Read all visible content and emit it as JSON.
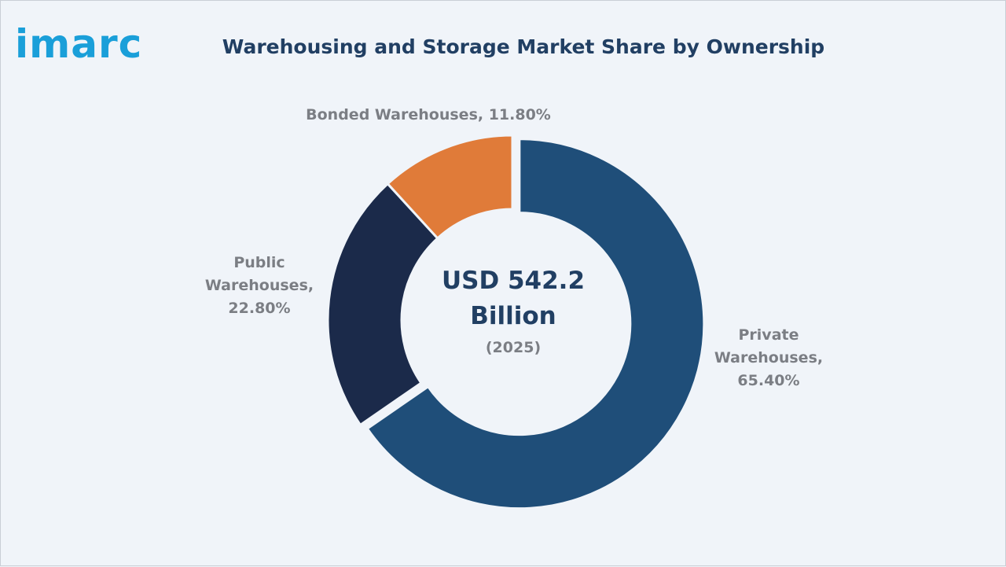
{
  "brand": {
    "logo_text": "imarc",
    "logo_color": "#1a9fd9"
  },
  "chart_data": {
    "type": "pie",
    "title": "Warehousing and Storage Market Share by Ownership",
    "center_label": {
      "value_line1": "USD 542.2",
      "value_line2": "Billion",
      "year": "(2025)"
    },
    "slices": [
      {
        "label_lines": [
          "Private",
          "Warehouses,",
          "65.40%"
        ],
        "category": "Private Warehouses",
        "value": 65.4,
        "color": "#1f4e79"
      },
      {
        "label_lines": [
          "Public",
          "Warehouses,",
          "22.80%"
        ],
        "category": "Public Warehouses",
        "value": 22.8,
        "color": "#1b2a4a"
      },
      {
        "label_lines": [
          "Bonded Warehouses, 11.80%"
        ],
        "category": "Bonded Warehouses",
        "value": 11.8,
        "color": "#e07b39"
      }
    ]
  }
}
